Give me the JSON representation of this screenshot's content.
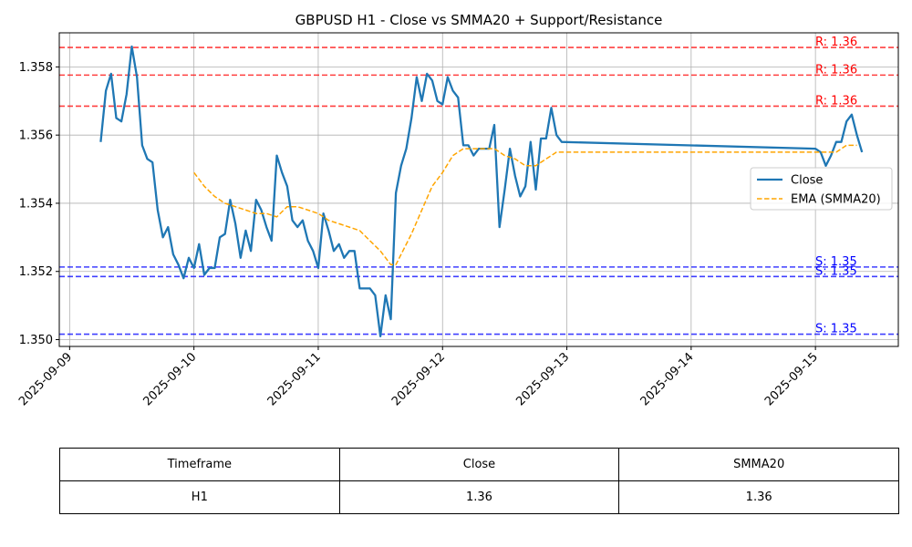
{
  "chart_data": {
    "type": "line",
    "title": "GBPUSD H1 - Close vs SMMA20 + Support/Resistance",
    "xlabel": "",
    "ylabel": "",
    "x_range": [
      "2025-09-08T22:00",
      "2025-09-15T16:00"
    ],
    "ylim": [
      1.3498,
      1.359
    ],
    "x_ticks": [
      "2025-09-09",
      "2025-09-10",
      "2025-09-11",
      "2025-09-12",
      "2025-09-13",
      "2025-09-14",
      "2025-09-15"
    ],
    "y_ticks": [
      "1.350",
      "1.352",
      "1.354",
      "1.356",
      "1.358"
    ],
    "grid": true,
    "legend_position": "center-right",
    "series": [
      {
        "name": "Close",
        "color": "#1f77b4",
        "style": "solid",
        "points": [
          [
            "2025-09-09T06:00",
            1.3558
          ],
          [
            "2025-09-09T07:00",
            1.3573
          ],
          [
            "2025-09-09T08:00",
            1.3578
          ],
          [
            "2025-09-09T09:00",
            1.3565
          ],
          [
            "2025-09-09T10:00",
            1.3564
          ],
          [
            "2025-09-09T11:00",
            1.3572
          ],
          [
            "2025-09-09T12:00",
            1.3586
          ],
          [
            "2025-09-09T13:00",
            1.3577
          ],
          [
            "2025-09-09T14:00",
            1.3557
          ],
          [
            "2025-09-09T15:00",
            1.3553
          ],
          [
            "2025-09-09T16:00",
            1.3552
          ],
          [
            "2025-09-09T17:00",
            1.3538
          ],
          [
            "2025-09-09T18:00",
            1.353
          ],
          [
            "2025-09-09T19:00",
            1.3533
          ],
          [
            "2025-09-09T20:00",
            1.3525
          ],
          [
            "2025-09-09T21:00",
            1.3522
          ],
          [
            "2025-09-09T22:00",
            1.3518
          ],
          [
            "2025-09-09T23:00",
            1.3524
          ],
          [
            "2025-09-10T00:00",
            1.3521
          ],
          [
            "2025-09-10T01:00",
            1.3528
          ],
          [
            "2025-09-10T02:00",
            1.3519
          ],
          [
            "2025-09-10T03:00",
            1.3521
          ],
          [
            "2025-09-10T04:00",
            1.3521
          ],
          [
            "2025-09-10T05:00",
            1.353
          ],
          [
            "2025-09-10T06:00",
            1.3531
          ],
          [
            "2025-09-10T07:00",
            1.3541
          ],
          [
            "2025-09-10T08:00",
            1.3534
          ],
          [
            "2025-09-10T09:00",
            1.3524
          ],
          [
            "2025-09-10T10:00",
            1.3532
          ],
          [
            "2025-09-10T11:00",
            1.3526
          ],
          [
            "2025-09-10T12:00",
            1.3541
          ],
          [
            "2025-09-10T13:00",
            1.3538
          ],
          [
            "2025-09-10T14:00",
            1.3533
          ],
          [
            "2025-09-10T15:00",
            1.3529
          ],
          [
            "2025-09-10T16:00",
            1.3554
          ],
          [
            "2025-09-10T17:00",
            1.3549
          ],
          [
            "2025-09-10T18:00",
            1.3545
          ],
          [
            "2025-09-10T19:00",
            1.3535
          ],
          [
            "2025-09-10T20:00",
            1.3533
          ],
          [
            "2025-09-10T21:00",
            1.3535
          ],
          [
            "2025-09-10T22:00",
            1.3529
          ],
          [
            "2025-09-10T23:00",
            1.3526
          ],
          [
            "2025-09-11T00:00",
            1.3521
          ],
          [
            "2025-09-11T01:00",
            1.3537
          ],
          [
            "2025-09-11T02:00",
            1.3532
          ],
          [
            "2025-09-11T03:00",
            1.3526
          ],
          [
            "2025-09-11T04:00",
            1.3528
          ],
          [
            "2025-09-11T05:00",
            1.3524
          ],
          [
            "2025-09-11T06:00",
            1.3526
          ],
          [
            "2025-09-11T07:00",
            1.3526
          ],
          [
            "2025-09-11T08:00",
            1.3515
          ],
          [
            "2025-09-11T09:00",
            1.3515
          ],
          [
            "2025-09-11T10:00",
            1.3515
          ],
          [
            "2025-09-11T11:00",
            1.3513
          ],
          [
            "2025-09-11T12:00",
            1.3501
          ],
          [
            "2025-09-11T13:00",
            1.3513
          ],
          [
            "2025-09-11T14:00",
            1.3506
          ],
          [
            "2025-09-11T15:00",
            1.3543
          ],
          [
            "2025-09-11T16:00",
            1.3551
          ],
          [
            "2025-09-11T17:00",
            1.3556
          ],
          [
            "2025-09-11T18:00",
            1.3565
          ],
          [
            "2025-09-11T19:00",
            1.3577
          ],
          [
            "2025-09-11T20:00",
            1.357
          ],
          [
            "2025-09-11T21:00",
            1.3578
          ],
          [
            "2025-09-11T22:00",
            1.3576
          ],
          [
            "2025-09-11T23:00",
            1.357
          ],
          [
            "2025-09-12T00:00",
            1.3569
          ],
          [
            "2025-09-12T01:00",
            1.3577
          ],
          [
            "2025-09-12T02:00",
            1.3573
          ],
          [
            "2025-09-12T03:00",
            1.3571
          ],
          [
            "2025-09-12T04:00",
            1.3557
          ],
          [
            "2025-09-12T05:00",
            1.3557
          ],
          [
            "2025-09-12T06:00",
            1.3554
          ],
          [
            "2025-09-12T07:00",
            1.3556
          ],
          [
            "2025-09-12T08:00",
            1.3556
          ],
          [
            "2025-09-12T09:00",
            1.3556
          ],
          [
            "2025-09-12T10:00",
            1.3563
          ],
          [
            "2025-09-12T11:00",
            1.3533
          ],
          [
            "2025-09-12T12:00",
            1.3544
          ],
          [
            "2025-09-12T13:00",
            1.3556
          ],
          [
            "2025-09-12T14:00",
            1.3548
          ],
          [
            "2025-09-12T15:00",
            1.3542
          ],
          [
            "2025-09-12T16:00",
            1.3545
          ],
          [
            "2025-09-12T17:00",
            1.3558
          ],
          [
            "2025-09-12T18:00",
            1.3544
          ],
          [
            "2025-09-12T19:00",
            1.3559
          ],
          [
            "2025-09-12T20:00",
            1.3559
          ],
          [
            "2025-09-12T21:00",
            1.3568
          ],
          [
            "2025-09-12T22:00",
            1.356
          ],
          [
            "2025-09-12T23:00",
            1.3558
          ],
          [
            "2025-09-15T00:00",
            1.3556
          ],
          [
            "2025-09-15T01:00",
            1.3555
          ],
          [
            "2025-09-15T02:00",
            1.3551
          ],
          [
            "2025-09-15T03:00",
            1.3554
          ],
          [
            "2025-09-15T04:00",
            1.3558
          ],
          [
            "2025-09-15T05:00",
            1.3558
          ],
          [
            "2025-09-15T06:00",
            1.3564
          ],
          [
            "2025-09-15T07:00",
            1.3566
          ],
          [
            "2025-09-15T08:00",
            1.356
          ],
          [
            "2025-09-15T09:00",
            1.3555
          ]
        ]
      },
      {
        "name": "EMA (SMMA20)",
        "color": "#ffa500",
        "style": "dashed",
        "points": [
          [
            "2025-09-10T00:00",
            1.3549
          ],
          [
            "2025-09-10T02:00",
            1.3545
          ],
          [
            "2025-09-10T04:00",
            1.3542
          ],
          [
            "2025-09-10T06:00",
            1.354
          ],
          [
            "2025-09-10T08:00",
            1.3539
          ],
          [
            "2025-09-10T10:00",
            1.3538
          ],
          [
            "2025-09-10T12:00",
            1.3537
          ],
          [
            "2025-09-10T14:00",
            1.3537
          ],
          [
            "2025-09-10T16:00",
            1.3536
          ],
          [
            "2025-09-10T18:00",
            1.3539
          ],
          [
            "2025-09-10T20:00",
            1.3539
          ],
          [
            "2025-09-10T22:00",
            1.3538
          ],
          [
            "2025-09-11T00:00",
            1.3537
          ],
          [
            "2025-09-11T02:00",
            1.3535
          ],
          [
            "2025-09-11T04:00",
            1.3534
          ],
          [
            "2025-09-11T06:00",
            1.3533
          ],
          [
            "2025-09-11T08:00",
            1.3532
          ],
          [
            "2025-09-11T10:00",
            1.3529
          ],
          [
            "2025-09-11T12:00",
            1.3526
          ],
          [
            "2025-09-11T14:00",
            1.3522
          ],
          [
            "2025-09-11T15:00",
            1.3522
          ],
          [
            "2025-09-11T16:00",
            1.3525
          ],
          [
            "2025-09-11T18:00",
            1.3531
          ],
          [
            "2025-09-11T20:00",
            1.3538
          ],
          [
            "2025-09-11T22:00",
            1.3545
          ],
          [
            "2025-09-12T00:00",
            1.3549
          ],
          [
            "2025-09-12T02:00",
            1.3554
          ],
          [
            "2025-09-12T04:00",
            1.3556
          ],
          [
            "2025-09-12T06:00",
            1.3556
          ],
          [
            "2025-09-12T08:00",
            1.3556
          ],
          [
            "2025-09-12T10:00",
            1.3556
          ],
          [
            "2025-09-12T12:00",
            1.3554
          ],
          [
            "2025-09-12T14:00",
            1.3553
          ],
          [
            "2025-09-12T16:00",
            1.3551
          ],
          [
            "2025-09-12T18:00",
            1.3551
          ],
          [
            "2025-09-12T20:00",
            1.3553
          ],
          [
            "2025-09-12T22:00",
            1.3555
          ],
          [
            "2025-09-13T00:00",
            1.3555
          ],
          [
            "2025-09-15T00:00",
            1.3555
          ],
          [
            "2025-09-15T02:00",
            1.3555
          ],
          [
            "2025-09-15T04:00",
            1.3555
          ],
          [
            "2025-09-15T06:00",
            1.3557
          ],
          [
            "2025-09-15T08:00",
            1.3557
          ]
        ]
      }
    ],
    "resistance": {
      "color": "#ff0000",
      "levels": [
        {
          "value": 1.35857,
          "label": "R: 1.36"
        },
        {
          "value": 1.35776,
          "label": "R: 1.36"
        },
        {
          "value": 1.35685,
          "label": "R: 1.36"
        }
      ]
    },
    "support": {
      "color": "#0000ff",
      "levels": [
        {
          "value": 1.35213,
          "label": "S: 1.35"
        },
        {
          "value": 1.35185,
          "label": "S: 1.35"
        },
        {
          "value": 1.35016,
          "label": "S: 1.35"
        }
      ]
    }
  },
  "table": {
    "headers": [
      "Timeframe",
      "Close",
      "SMMA20"
    ],
    "rows": [
      [
        "H1",
        "1.36",
        "1.36"
      ]
    ]
  }
}
